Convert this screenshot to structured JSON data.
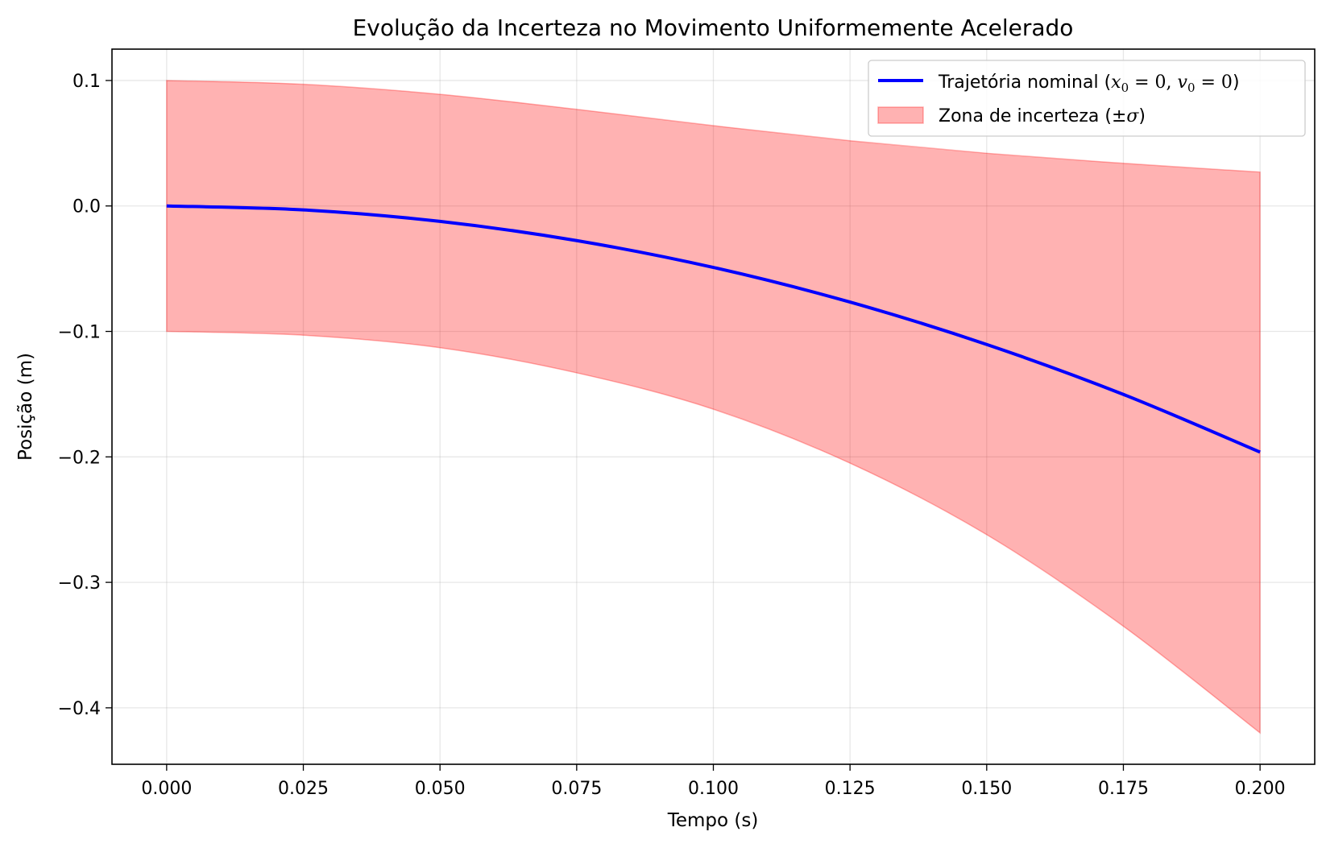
{
  "chart_data": {
    "type": "line",
    "title": "Evolução da Incerteza no Movimento Uniformemente Acelerado",
    "xlabel": "Tempo (s)",
    "ylabel": "Posição (m)",
    "xlim": [
      -0.01,
      0.21
    ],
    "ylim": [
      -0.445,
      0.125
    ],
    "xticks": [
      0.0,
      0.025,
      0.05,
      0.075,
      0.1,
      0.125,
      0.15,
      0.175,
      0.2
    ],
    "xtick_labels": [
      "0.000",
      "0.025",
      "0.050",
      "0.075",
      "0.100",
      "0.125",
      "0.150",
      "0.175",
      "0.200"
    ],
    "yticks": [
      0.1,
      0.0,
      -0.1,
      -0.2,
      -0.3,
      -0.4
    ],
    "ytick_labels": [
      "0.1",
      "0.0",
      "−0.1",
      "−0.2",
      "−0.3",
      "−0.4"
    ],
    "grid": true,
    "legend_position": "top-right",
    "series": [
      {
        "name": "Trajetória nominal",
        "kind": "line",
        "color": "#0000ff",
        "x": [
          0.0,
          0.025,
          0.05,
          0.075,
          0.1,
          0.125,
          0.15,
          0.175,
          0.2
        ],
        "y": [
          0.0,
          -0.0031,
          -0.0123,
          -0.0276,
          -0.049,
          -0.0766,
          -0.1104,
          -0.1502,
          -0.1962
        ]
      },
      {
        "name": "Zona de incerteza",
        "kind": "band",
        "color": "#ff0000",
        "x": [
          0.0,
          0.025,
          0.05,
          0.075,
          0.1,
          0.125,
          0.15,
          0.175,
          0.2
        ],
        "upper": [
          0.1,
          0.097,
          0.089,
          0.077,
          0.064,
          0.052,
          0.042,
          0.034,
          0.027
        ],
        "lower": [
          -0.1,
          -0.103,
          -0.113,
          -0.133,
          -0.162,
          -0.205,
          -0.262,
          -0.335,
          -0.42
        ]
      }
    ],
    "legend": [
      {
        "text": "Trajetória nominal (",
        "math": {
          "v1": "x",
          "s1": "0",
          "eq1": " = 0, ",
          "v2": "v",
          "s2": "0",
          "eq2": " = 0"
        },
        "close": ")"
      },
      {
        "text": "Zona de incerteza (",
        "math": {
          "pm": "±",
          "sig": "σ"
        },
        "close": ")"
      }
    ]
  }
}
